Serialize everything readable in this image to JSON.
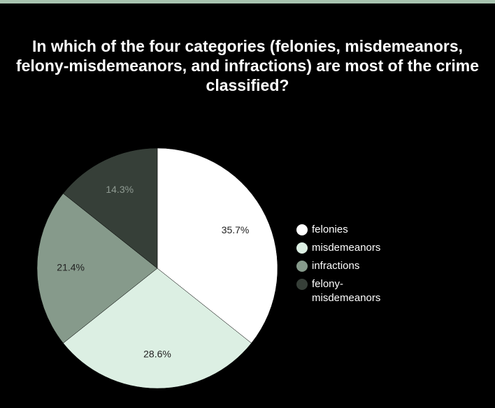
{
  "chart_data": {
    "type": "pie",
    "title": "In which of the four categories (felonies, misdemeanors, felony-misdemeanors, and infractions) are most of the crime classified?",
    "slices": [
      {
        "name": "felonies",
        "value": 35.7,
        "label": "35.7%",
        "color": "#ffffff",
        "label_color": "#222222"
      },
      {
        "name": "misdemeanors",
        "value": 28.6,
        "label": "28.6%",
        "color": "#dcefe3",
        "label_color": "#222222"
      },
      {
        "name": "infractions",
        "value": 21.4,
        "label": "21.4%",
        "color": "#869a8b",
        "label_color": "#222222"
      },
      {
        "name": "felony-misdemeanors",
        "value": 14.3,
        "label": "14.3%",
        "color": "#363f38",
        "label_color": "#8f9a92"
      }
    ],
    "legend_position": "right",
    "background": "#000000",
    "accent": "#a8c4b0"
  }
}
